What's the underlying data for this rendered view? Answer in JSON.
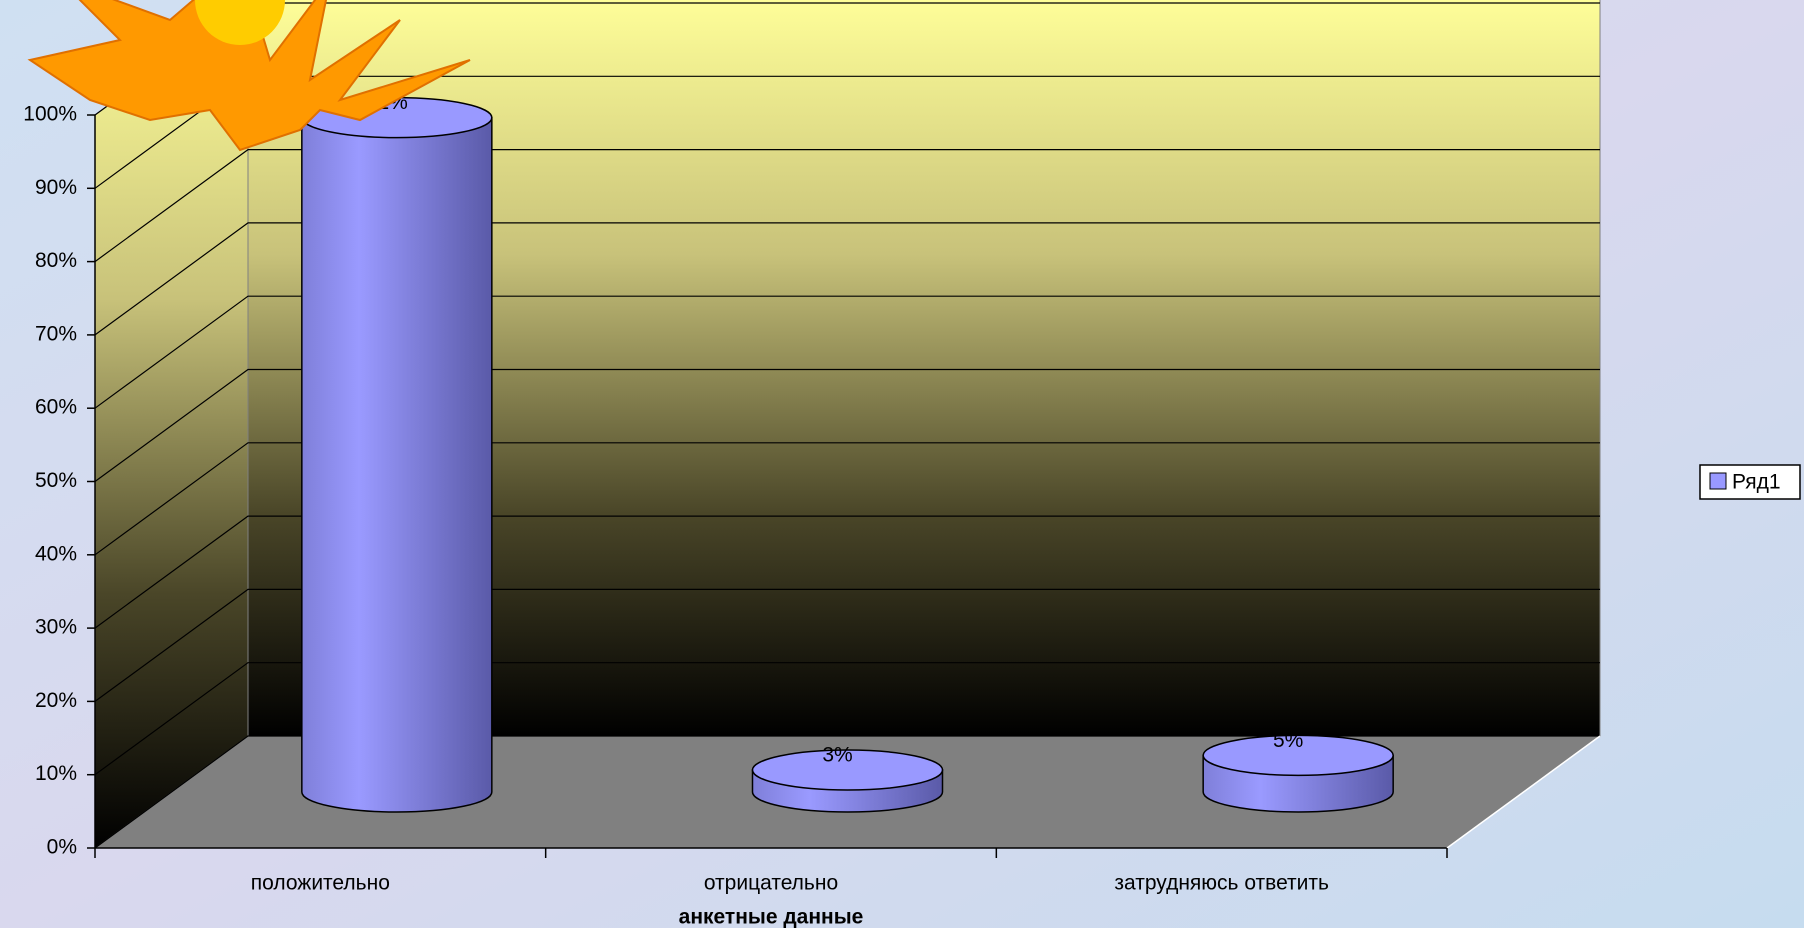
{
  "chart_data": {
    "type": "bar",
    "x_label": "анкетные данные",
    "categories": [
      "положительно",
      "отрицательно",
      "затрудняюсь ответить"
    ],
    "series": [
      {
        "name": "Ряд1",
        "color": "#9999ff",
        "values": [
          92,
          3,
          5
        ],
        "value_labels": [
          "92%",
          "3%",
          "5%"
        ]
      }
    ],
    "ylim": [
      0,
      100
    ],
    "yticks": [
      {
        "value": 0,
        "label": "0%"
      },
      {
        "value": 10,
        "label": "10%"
      },
      {
        "value": 20,
        "label": "20%"
      },
      {
        "value": 30,
        "label": "30%"
      },
      {
        "value": 40,
        "label": "40%"
      },
      {
        "value": 50,
        "label": "50%"
      },
      {
        "value": 60,
        "label": "60%"
      },
      {
        "value": 70,
        "label": "70%"
      },
      {
        "value": 80,
        "label": "80%"
      },
      {
        "value": 90,
        "label": "90%"
      },
      {
        "value": 100,
        "label": "100%"
      }
    ],
    "grid": true,
    "legend": "right"
  }
}
